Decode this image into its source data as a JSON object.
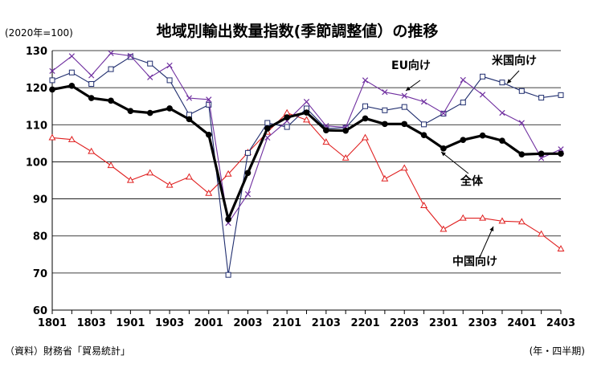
{
  "unit_note": "(2020年=100)",
  "source": "（資料）財務省「貿易統計」",
  "period_note": "(年・四半期)",
  "chart_data": {
    "type": "line",
    "title": "地域別輸出数量指数(季節調整値）の推移",
    "xlabel": "",
    "ylabel": "",
    "ylim": [
      60,
      130
    ],
    "yticks": [
      60,
      70,
      80,
      90,
      100,
      110,
      120,
      130
    ],
    "grid": true,
    "categories": [
      "1801",
      "1802",
      "1803",
      "1804",
      "1901",
      "1902",
      "1903",
      "1904",
      "2001",
      "2002",
      "2003",
      "2004",
      "2101",
      "2102",
      "2103",
      "2104",
      "2201",
      "2202",
      "2203",
      "2204",
      "2301",
      "2302",
      "2303",
      "2304",
      "2401",
      "2402",
      "2403"
    ],
    "xtick_labels": [
      "1801",
      "1803",
      "1901",
      "1903",
      "2001",
      "2003",
      "2101",
      "2103",
      "2201",
      "2203",
      "2301",
      "2303",
      "2401",
      "2403"
    ],
    "series": [
      {
        "name": "全体",
        "color": "#000000",
        "marker": "dot",
        "values": [
          119.5,
          120.5,
          117.2,
          116.5,
          113.7,
          113.2,
          114.4,
          111.5,
          107.3,
          84.5,
          97.0,
          109.0,
          112.0,
          113.3,
          108.5,
          108.4,
          111.7,
          110.2,
          110.2,
          107.2,
          103.6,
          105.9,
          107.1,
          105.7,
          102.0,
          102.2,
          102.2
        ]
      },
      {
        "name": "米国向け",
        "color": "#7030a0",
        "marker": "x",
        "values": [
          124.5,
          128.5,
          123.3,
          129.3,
          128.6,
          122.8,
          126.0,
          117.2,
          116.8,
          83.5,
          91.3,
          106.5,
          111.0,
          116.2,
          109.7,
          109.3,
          122.0,
          118.8,
          117.8,
          116.2,
          113.1,
          122.1,
          118.1,
          113.2,
          110.5,
          101.0,
          103.4
        ]
      },
      {
        "name": "EU向け",
        "color": "#1f2d6e",
        "marker": "square",
        "values": [
          122.0,
          124.1,
          121.0,
          125.0,
          128.3,
          126.5,
          122.0,
          112.7,
          115.4,
          69.5,
          102.4,
          110.5,
          109.4,
          114.4,
          109.0,
          109.2,
          115.0,
          113.9,
          114.8,
          110.1,
          113.0,
          116.0,
          123.0,
          121.4,
          119.1,
          117.3,
          118.0
        ]
      },
      {
        "name": "中国向け",
        "color": "#e02020",
        "marker": "triangle",
        "values": [
          106.5,
          106.0,
          102.8,
          99.0,
          95.0,
          97.0,
          93.7,
          95.9,
          91.5,
          96.7,
          102.5,
          108.0,
          113.2,
          111.3,
          105.3,
          101.0,
          106.5,
          95.4,
          98.3,
          88.2,
          81.8,
          84.8,
          84.8,
          84.0,
          83.8,
          80.5,
          76.5
        ]
      }
    ]
  }
}
